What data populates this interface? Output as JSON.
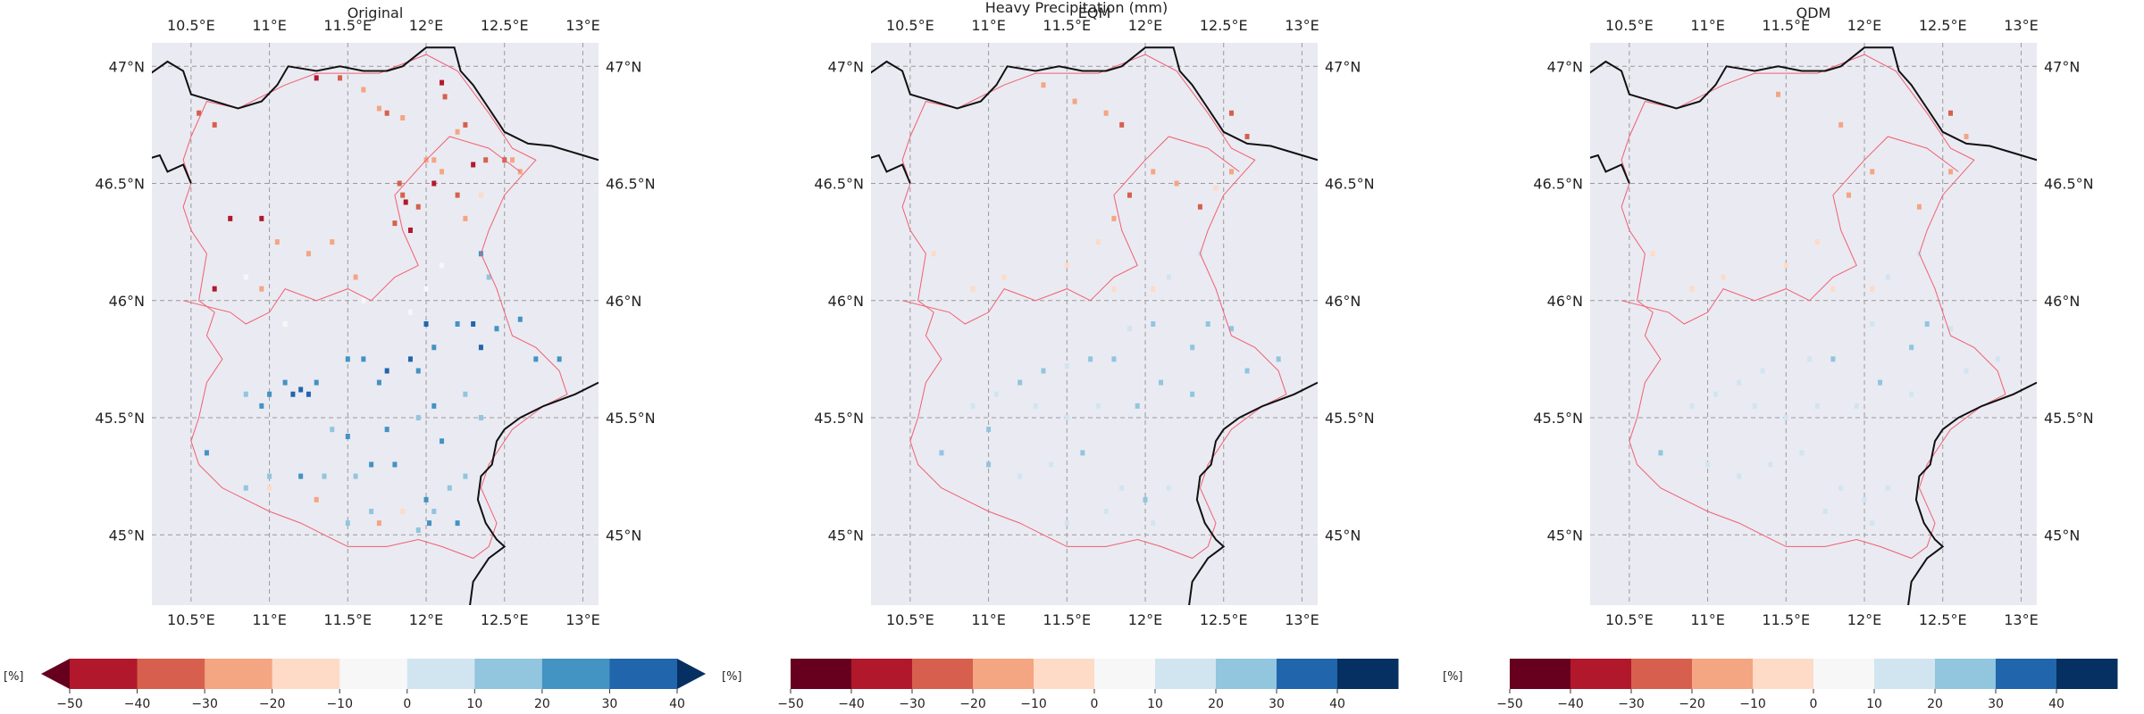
{
  "suptitle": "Heavy Precipitation (mm)",
  "unit_label": "[%]",
  "colorbar_ticks": [
    -50,
    -40,
    -30,
    -20,
    -10,
    0,
    10,
    20,
    30,
    40
  ],
  "palettes": {
    "original": [
      "#b2182b",
      "#d6604d",
      "#f4a582",
      "#fddbc7",
      "#f7f7f7",
      "#d1e5f0",
      "#92c5de",
      "#4393c3",
      "#2166ac"
    ],
    "corrected": [
      "#67001f",
      "#b2182b",
      "#d6604d",
      "#f4a582",
      "#fddbc7",
      "#f7f7f7",
      "#d1e5f0",
      "#92c5de",
      "#2166ac",
      "#053061"
    ],
    "extend_low": "#67001f",
    "extend_high": "#053061",
    "map_background": "#eaeaf2",
    "coast": "#111111",
    "region_border": "#f06070"
  },
  "axes": {
    "lon_ticks": [
      "10.5°E",
      "11°E",
      "11.5°E",
      "12°E",
      "12.5°E",
      "13°E"
    ],
    "lat_ticks": [
      "47°N",
      "46.5°N",
      "46°N",
      "45.5°N",
      "45°N"
    ],
    "lon_values": [
      10.5,
      11.0,
      11.5,
      12.0,
      12.5,
      13.0
    ],
    "lat_values": [
      47.0,
      46.5,
      46.0,
      45.5,
      45.0
    ],
    "xlim": [
      10.25,
      13.1
    ],
    "ylim": [
      44.7,
      47.1
    ]
  },
  "chart_data": [
    {
      "type": "heatmap",
      "title": "Original",
      "cells": [
        [
          11.3,
          46.95,
          -45
        ],
        [
          11.45,
          46.95,
          -40
        ],
        [
          11.75,
          46.8,
          -35
        ],
        [
          11.85,
          46.78,
          -30
        ],
        [
          12.1,
          46.93,
          -45
        ],
        [
          12.12,
          46.87,
          -40
        ],
        [
          12.2,
          46.72,
          -30
        ],
        [
          12.25,
          46.75,
          -35
        ],
        [
          12.0,
          46.6,
          -30
        ],
        [
          12.3,
          46.58,
          -42
        ],
        [
          12.5,
          46.6,
          -35
        ],
        [
          12.6,
          46.55,
          -30
        ],
        [
          12.55,
          46.6,
          -25
        ],
        [
          12.38,
          46.6,
          -40
        ],
        [
          12.1,
          46.55,
          -25
        ],
        [
          11.85,
          46.45,
          -35
        ],
        [
          11.83,
          46.5,
          -40
        ],
        [
          11.87,
          46.42,
          -45
        ],
        [
          11.9,
          46.3,
          -45
        ],
        [
          11.95,
          46.4,
          -35
        ],
        [
          12.2,
          46.45,
          -40
        ],
        [
          12.25,
          46.35,
          -30
        ],
        [
          12.35,
          46.45,
          -20
        ],
        [
          12.05,
          46.5,
          -45
        ],
        [
          11.8,
          46.33,
          -35
        ],
        [
          10.75,
          46.35,
          -45
        ],
        [
          10.95,
          46.35,
          -45
        ],
        [
          11.05,
          46.25,
          -25
        ],
        [
          11.25,
          46.2,
          -30
        ],
        [
          11.4,
          46.25,
          -25
        ],
        [
          10.65,
          46.05,
          -45
        ],
        [
          10.95,
          46.05,
          -25
        ],
        [
          11.55,
          46.1,
          -25
        ],
        [
          10.55,
          46.8,
          -40
        ],
        [
          10.65,
          46.75,
          -35
        ],
        [
          10.15,
          46.65,
          -35
        ],
        [
          12.05,
          46.6,
          -30
        ],
        [
          11.7,
          46.82,
          -30
        ],
        [
          11.6,
          46.9,
          -25
        ],
        [
          12.35,
          46.2,
          25
        ],
        [
          12.4,
          46.1,
          15
        ],
        [
          12.3,
          45.9,
          35
        ],
        [
          12.45,
          45.88,
          25
        ],
        [
          12.6,
          45.92,
          25
        ],
        [
          12.2,
          45.9,
          25
        ],
        [
          12.7,
          45.75,
          25
        ],
        [
          12.85,
          45.75,
          25
        ],
        [
          12.35,
          45.8,
          45
        ],
        [
          12.0,
          45.9,
          35
        ],
        [
          12.05,
          45.8,
          25
        ],
        [
          11.9,
          45.75,
          35
        ],
        [
          11.95,
          45.7,
          25
        ],
        [
          11.75,
          45.7,
          35
        ],
        [
          11.7,
          45.65,
          25
        ],
        [
          11.6,
          45.75,
          25
        ],
        [
          11.5,
          45.75,
          25
        ],
        [
          11.3,
          45.65,
          25
        ],
        [
          11.25,
          45.6,
          35
        ],
        [
          11.15,
          45.6,
          35
        ],
        [
          11.2,
          45.62,
          35
        ],
        [
          11.1,
          45.65,
          25
        ],
        [
          11.0,
          45.6,
          25
        ],
        [
          10.85,
          45.6,
          15
        ],
        [
          10.95,
          45.55,
          25
        ],
        [
          11.4,
          45.45,
          15
        ],
        [
          11.5,
          45.42,
          25
        ],
        [
          11.75,
          45.45,
          25
        ],
        [
          11.95,
          45.5,
          15
        ],
        [
          12.05,
          45.55,
          25
        ],
        [
          12.25,
          45.6,
          15
        ],
        [
          12.35,
          45.5,
          15
        ],
        [
          11.8,
          45.3,
          25
        ],
        [
          11.65,
          45.3,
          25
        ],
        [
          11.55,
          45.25,
          15
        ],
        [
          11.35,
          45.25,
          15
        ],
        [
          11.2,
          45.25,
          25
        ],
        [
          11.0,
          45.25,
          15
        ],
        [
          10.85,
          45.2,
          15
        ],
        [
          10.6,
          45.35,
          25
        ],
        [
          12.0,
          45.15,
          25
        ],
        [
          12.15,
          45.2,
          15
        ],
        [
          12.2,
          45.05,
          25
        ],
        [
          12.05,
          45.1,
          15
        ],
        [
          11.95,
          45.02,
          15
        ],
        [
          11.65,
          45.1,
          15
        ],
        [
          11.5,
          45.05,
          15
        ],
        [
          12.1,
          45.4,
          25
        ],
        [
          12.25,
          45.25,
          15
        ],
        [
          11.85,
          45.1,
          -20
        ],
        [
          11.7,
          45.05,
          -25
        ],
        [
          11.3,
          45.15,
          -25
        ],
        [
          11.0,
          45.2,
          -20
        ],
        [
          12.02,
          45.05,
          25
        ],
        [
          12.1,
          46.15,
          -5
        ],
        [
          11.6,
          46.0,
          -5
        ],
        [
          12.0,
          46.05,
          -5
        ],
        [
          10.85,
          46.1,
          -5
        ],
        [
          11.1,
          45.9,
          -5
        ],
        [
          11.9,
          45.95,
          -5
        ]
      ]
    },
    {
      "type": "heatmap",
      "title": "EQM",
      "cells": [
        [
          12.55,
          46.8,
          -25
        ],
        [
          12.65,
          46.7,
          -25
        ],
        [
          11.35,
          46.92,
          -15
        ],
        [
          11.55,
          46.85,
          -15
        ],
        [
          11.75,
          46.8,
          -15
        ],
        [
          11.85,
          46.75,
          -25
        ],
        [
          12.05,
          46.55,
          -15
        ],
        [
          12.2,
          46.5,
          -15
        ],
        [
          12.35,
          46.4,
          -25
        ],
        [
          11.9,
          46.45,
          -25
        ],
        [
          11.8,
          46.35,
          -15
        ],
        [
          11.7,
          46.25,
          -5
        ],
        [
          12.55,
          46.55,
          -15
        ],
        [
          12.45,
          46.48,
          -5
        ],
        [
          12.35,
          46.2,
          15
        ],
        [
          12.15,
          46.1,
          15
        ],
        [
          12.4,
          45.9,
          25
        ],
        [
          12.55,
          45.88,
          25
        ],
        [
          12.3,
          45.8,
          25
        ],
        [
          12.05,
          45.9,
          25
        ],
        [
          11.9,
          45.88,
          15
        ],
        [
          11.8,
          45.75,
          25
        ],
        [
          11.65,
          45.75,
          25
        ],
        [
          11.5,
          45.72,
          15
        ],
        [
          11.35,
          45.7,
          25
        ],
        [
          11.2,
          45.65,
          25
        ],
        [
          11.05,
          45.6,
          15
        ],
        [
          10.9,
          45.55,
          15
        ],
        [
          11.0,
          45.45,
          25
        ],
        [
          11.3,
          45.55,
          15
        ],
        [
          11.5,
          45.5,
          15
        ],
        [
          11.7,
          45.55,
          15
        ],
        [
          11.95,
          45.55,
          25
        ],
        [
          12.1,
          45.65,
          25
        ],
        [
          12.3,
          45.6,
          25
        ],
        [
          12.65,
          45.7,
          25
        ],
        [
          12.85,
          45.75,
          25
        ],
        [
          11.6,
          45.35,
          25
        ],
        [
          11.4,
          45.3,
          15
        ],
        [
          11.2,
          45.25,
          15
        ],
        [
          11.0,
          45.3,
          25
        ],
        [
          10.7,
          45.35,
          25
        ],
        [
          11.85,
          45.2,
          15
        ],
        [
          12.0,
          45.15,
          25
        ],
        [
          12.15,
          45.2,
          15
        ],
        [
          12.05,
          45.05,
          15
        ],
        [
          11.75,
          45.1,
          15
        ],
        [
          11.5,
          45.05,
          15
        ],
        [
          10.9,
          46.05,
          -5
        ],
        [
          11.1,
          46.1,
          -5
        ],
        [
          11.5,
          46.15,
          -5
        ],
        [
          11.8,
          46.05,
          -5
        ],
        [
          12.05,
          46.05,
          -5
        ],
        [
          10.65,
          46.2,
          -5
        ]
      ]
    },
    {
      "type": "heatmap",
      "title": "QDM",
      "cells": [
        [
          12.55,
          46.8,
          -25
        ],
        [
          12.65,
          46.7,
          -20
        ],
        [
          11.45,
          46.88,
          -15
        ],
        [
          11.85,
          46.75,
          -15
        ],
        [
          12.05,
          46.55,
          -15
        ],
        [
          12.35,
          46.4,
          -20
        ],
        [
          11.9,
          46.45,
          -15
        ],
        [
          12.55,
          46.55,
          -15
        ],
        [
          11.7,
          46.25,
          -5
        ],
        [
          12.35,
          46.2,
          15
        ],
        [
          12.15,
          46.1,
          15
        ],
        [
          12.4,
          45.9,
          25
        ],
        [
          12.55,
          45.88,
          15
        ],
        [
          12.3,
          45.8,
          25
        ],
        [
          12.05,
          45.9,
          15
        ],
        [
          11.8,
          45.75,
          25
        ],
        [
          11.65,
          45.75,
          15
        ],
        [
          11.35,
          45.7,
          15
        ],
        [
          11.2,
          45.65,
          15
        ],
        [
          11.05,
          45.6,
          15
        ],
        [
          10.9,
          45.55,
          15
        ],
        [
          11.3,
          45.55,
          15
        ],
        [
          11.5,
          45.5,
          15
        ],
        [
          11.7,
          45.55,
          15
        ],
        [
          11.95,
          45.55,
          15
        ],
        [
          12.1,
          45.65,
          25
        ],
        [
          12.3,
          45.6,
          15
        ],
        [
          12.65,
          45.7,
          15
        ],
        [
          12.85,
          45.75,
          15
        ],
        [
          11.6,
          45.35,
          15
        ],
        [
          11.4,
          45.3,
          15
        ],
        [
          11.2,
          45.25,
          15
        ],
        [
          11.0,
          45.3,
          15
        ],
        [
          10.7,
          45.35,
          25
        ],
        [
          11.85,
          45.2,
          15
        ],
        [
          12.0,
          45.15,
          15
        ],
        [
          12.15,
          45.2,
          15
        ],
        [
          12.05,
          45.05,
          15
        ],
        [
          11.75,
          45.1,
          15
        ],
        [
          10.9,
          46.05,
          -5
        ],
        [
          11.1,
          46.1,
          -5
        ],
        [
          11.5,
          46.15,
          -5
        ],
        [
          11.8,
          46.05,
          -5
        ],
        [
          12.05,
          46.05,
          -5
        ],
        [
          10.65,
          46.2,
          -5
        ]
      ]
    }
  ]
}
